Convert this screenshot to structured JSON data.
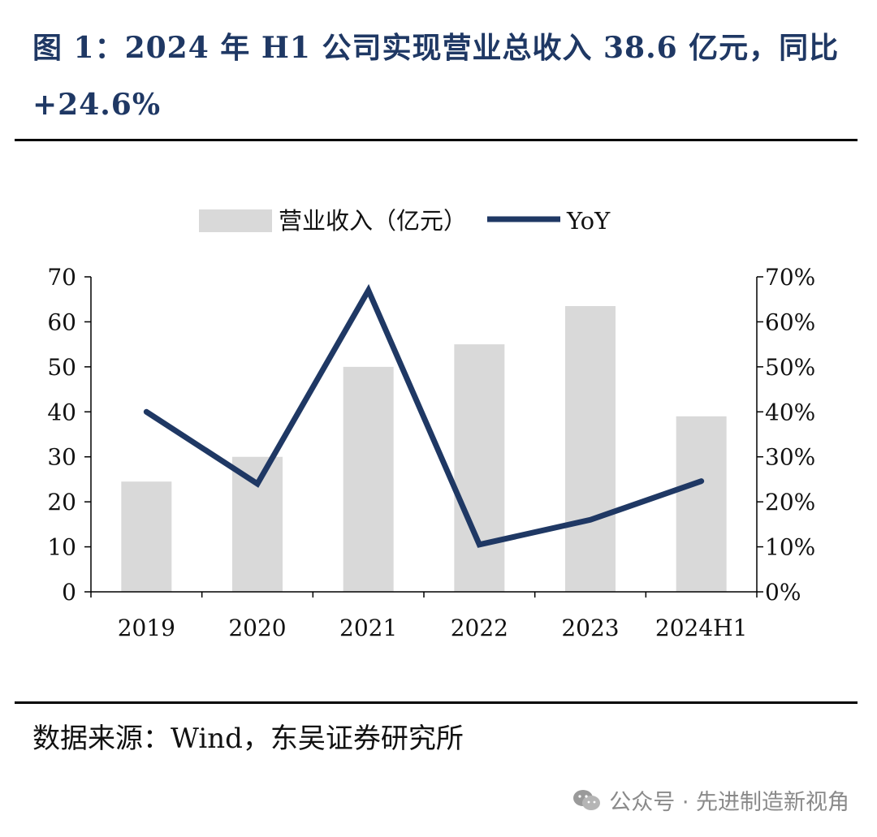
{
  "header": {
    "title": "图 1：2024 年 H1 公司实现营业总收入 38.6 亿元，同比 +24.6%"
  },
  "footer": {
    "source": "数据来源：Wind，东吴证券研究所"
  },
  "watermark": {
    "text": "公众号 · 先进制造新视角"
  },
  "chart_data": {
    "type": "bar",
    "title": "",
    "categories": [
      "2019",
      "2020",
      "2021",
      "2022",
      "2023",
      "2024H1"
    ],
    "series": [
      {
        "name": "营业收入（亿元）",
        "type": "bar",
        "axis": "left",
        "color": "#d9d9d9",
        "values": [
          24.5,
          30,
          50,
          55,
          63.5,
          39
        ]
      },
      {
        "name": "YoY",
        "type": "line",
        "axis": "right",
        "color": "#1f3864",
        "values": [
          40,
          24,
          67,
          10.5,
          16,
          24.6
        ]
      }
    ],
    "y_left": {
      "min": 0,
      "max": 70,
      "step": 10,
      "ticks": [
        "0",
        "10",
        "20",
        "30",
        "40",
        "50",
        "60",
        "70"
      ]
    },
    "y_right": {
      "min": 0,
      "max": 70,
      "step": 10,
      "ticks": [
        "0%",
        "10%",
        "20%",
        "30%",
        "40%",
        "50%",
        "60%",
        "70%"
      ]
    },
    "legend_position": "top-center",
    "grid": false
  }
}
